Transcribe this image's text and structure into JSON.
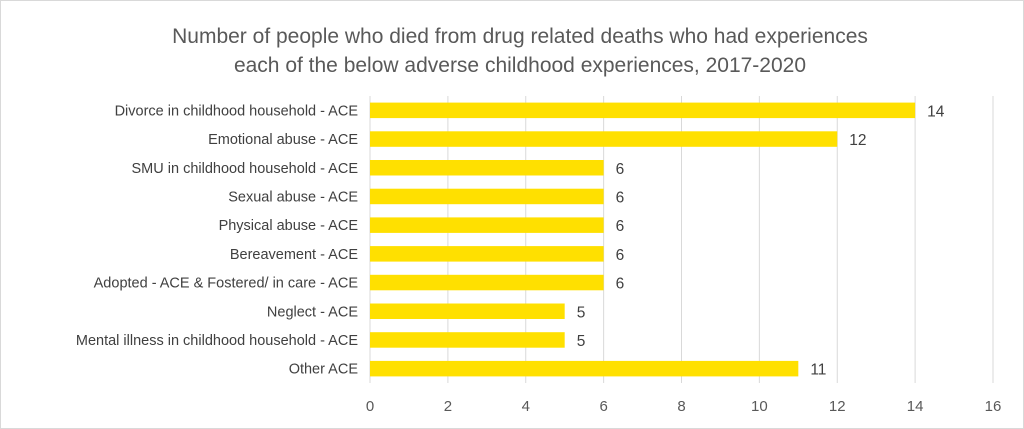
{
  "chart_data": {
    "type": "bar",
    "orientation": "horizontal",
    "title_lines": [
      "Number of people who died from drug related deaths who had experiences",
      "each of the below adverse childhood experiences, 2017-2020"
    ],
    "categories": [
      "Divorce in childhood household - ACE",
      "Emotional abuse - ACE",
      "SMU in childhood household - ACE",
      "Sexual abuse - ACE",
      "Physical abuse - ACE",
      "Bereavement - ACE",
      "Adopted - ACE & Fostered/ in care - ACE",
      "Neglect - ACE",
      "Mental illness in childhood household - ACE",
      "Other ACE"
    ],
    "values": [
      14,
      12,
      6,
      6,
      6,
      6,
      6,
      5,
      5,
      11
    ],
    "xlim": [
      0,
      16
    ],
    "xticks": [
      0,
      2,
      4,
      6,
      8,
      10,
      12,
      14,
      16
    ],
    "grid": "vertical",
    "data_labels": true,
    "bar_color": "#FFE000",
    "gridline_color": "#d9d9d9"
  }
}
